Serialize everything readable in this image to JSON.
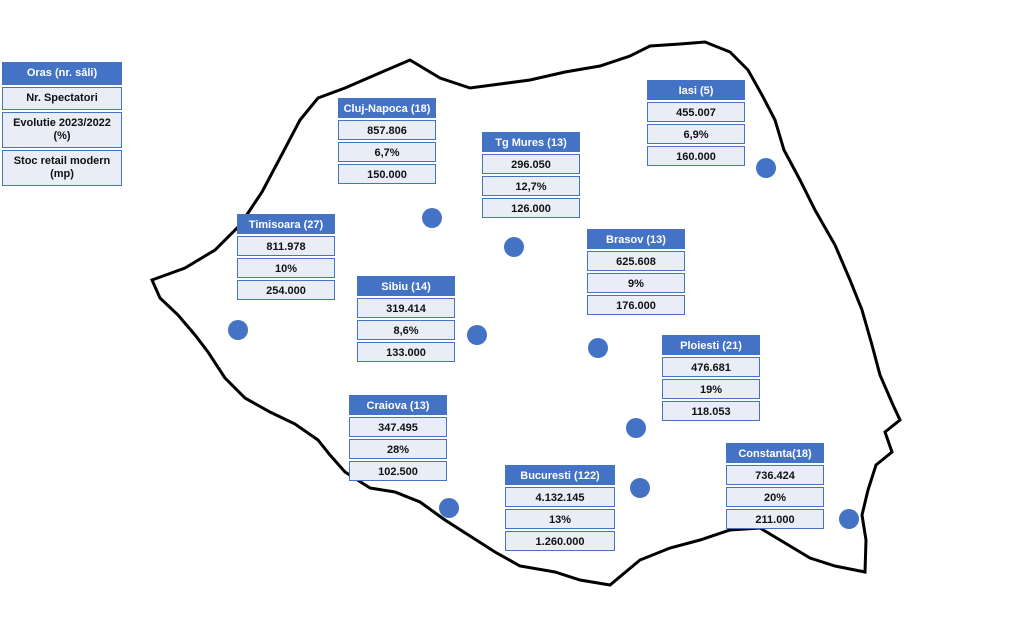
{
  "legend": {
    "rows": [
      "Oras (nr. săli)",
      "Nr. Spectatori",
      "Evolutie 2023/2022 (%)",
      "Stoc retail modern (mp)"
    ]
  },
  "cities": [
    {
      "name": "Cluj-Napoca (18)",
      "spectators": "857.806",
      "evolution": "6,7%",
      "stock": "150.000"
    },
    {
      "name": "Tg Mures (13)",
      "spectators": "296.050",
      "evolution": "12,7%",
      "stock": "126.000"
    },
    {
      "name": "Iasi (5)",
      "spectators": "455.007",
      "evolution": "6,9%",
      "stock": "160.000"
    },
    {
      "name": "Timisoara (27)",
      "spectators": "811.978",
      "evolution": "10%",
      "stock": "254.000"
    },
    {
      "name": "Sibiu (14)",
      "spectators": "319.414",
      "evolution": "8,6%",
      "stock": "133.000"
    },
    {
      "name": "Brasov (13)",
      "spectators": "625.608",
      "evolution": "9%",
      "stock": "176.000"
    },
    {
      "name": "Ploiesti (21)",
      "spectators": "476.681",
      "evolution": "19%",
      "stock": "118.053"
    },
    {
      "name": "Craiova (13)",
      "spectators": "347.495",
      "evolution": "28%",
      "stock": "102.500"
    },
    {
      "name": "Bucuresti (122)",
      "spectators": "4.132.145",
      "evolution": "13%",
      "stock": "1.260.000"
    },
    {
      "name": "Constanta(18)",
      "spectators": "736.424",
      "evolution": "20%",
      "stock": "211.000"
    }
  ]
}
